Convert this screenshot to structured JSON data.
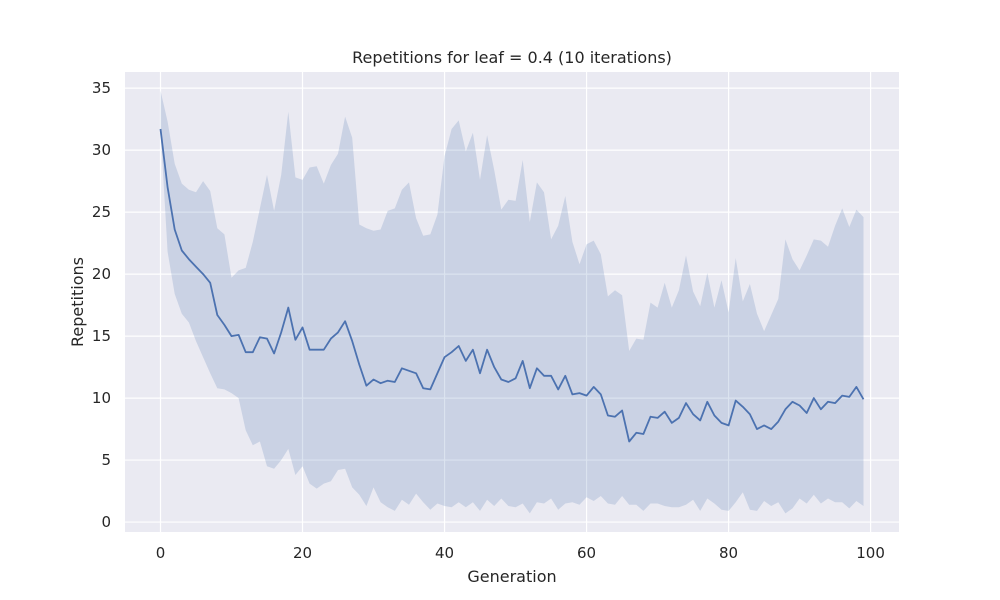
{
  "chart_data": {
    "type": "line",
    "title": "Repetitions for leaf = 0.4 (10 iterations)",
    "xlabel": "Generation",
    "ylabel": "Repetitions",
    "xlim": [
      -5,
      104
    ],
    "ylim": [
      -0.8,
      36.3
    ],
    "xticks": [
      0,
      20,
      40,
      60,
      80,
      100
    ],
    "yticks": [
      0,
      5,
      10,
      15,
      20,
      25,
      30,
      35
    ],
    "grid": true,
    "style": {
      "background": "#eaeaf2",
      "grid": "#ffffff",
      "line": "#4c72b0",
      "band": "#4c72b0",
      "band_opacity": 0.2
    },
    "series": [
      {
        "x": [
          0,
          1,
          2,
          3,
          4,
          5,
          6,
          7,
          8,
          9,
          10,
          11,
          12,
          13,
          14,
          15,
          16,
          17,
          18,
          19,
          20,
          21,
          22,
          23,
          24,
          25,
          26,
          27,
          28,
          29,
          30,
          31,
          32,
          33,
          34,
          35,
          36,
          37,
          38,
          39,
          40,
          41,
          42,
          43,
          44,
          45,
          46,
          47,
          48,
          49,
          50,
          51,
          52,
          53,
          54,
          55,
          56,
          57,
          58,
          59,
          60,
          61,
          62,
          63,
          64,
          65,
          66,
          67,
          68,
          69,
          70,
          71,
          72,
          73,
          74,
          75,
          76,
          77,
          78,
          79,
          80,
          81,
          82,
          83,
          84,
          85,
          86,
          87,
          88,
          89,
          90,
          91,
          92,
          93,
          94,
          95,
          96,
          97,
          98,
          99
        ],
        "mean": [
          31.7,
          27.0,
          23.6,
          21.9,
          21.2,
          20.6,
          20.0,
          19.3,
          16.7,
          15.9,
          15.0,
          15.1,
          13.7,
          13.7,
          14.9,
          14.8,
          13.6,
          15.3,
          17.3,
          14.7,
          15.7,
          13.9,
          13.9,
          13.9,
          14.8,
          15.3,
          16.2,
          14.6,
          12.7,
          11.0,
          11.5,
          11.2,
          11.4,
          11.3,
          12.4,
          12.2,
          12.0,
          10.8,
          10.7,
          12.0,
          13.3,
          13.7,
          14.2,
          13.0,
          13.9,
          12.0,
          13.9,
          12.5,
          11.5,
          11.3,
          11.6,
          13.0,
          10.8,
          12.4,
          11.8,
          11.8,
          10.7,
          11.8,
          10.3,
          10.4,
          10.2,
          10.9,
          10.3,
          8.6,
          8.5,
          9.0,
          6.5,
          7.2,
          7.1,
          8.5,
          8.4,
          8.9,
          8.0,
          8.4,
          9.6,
          8.7,
          8.2,
          9.7,
          8.6,
          8.0,
          7.8,
          9.8,
          9.3,
          8.7,
          7.5,
          7.8,
          7.5,
          8.1,
          9.1,
          9.7,
          9.4,
          8.8,
          10.0,
          9.1,
          9.7,
          9.6,
          10.2,
          10.1,
          10.9,
          9.9
        ],
        "lower": [
          31.7,
          21.8,
          18.4,
          16.8,
          16.1,
          14.6,
          13.3,
          12.0,
          10.8,
          10.7,
          10.4,
          10.0,
          7.4,
          6.2,
          6.5,
          4.5,
          4.3,
          5.0,
          5.9,
          3.8,
          4.5,
          3.1,
          2.7,
          3.1,
          3.3,
          4.2,
          4.3,
          2.8,
          2.2,
          1.3,
          2.8,
          1.6,
          1.2,
          0.9,
          1.8,
          1.4,
          2.3,
          1.6,
          1.0,
          1.5,
          1.3,
          1.2,
          1.6,
          1.2,
          1.6,
          0.9,
          1.8,
          1.3,
          1.9,
          1.3,
          1.2,
          1.5,
          0.7,
          1.6,
          1.5,
          1.9,
          1.0,
          1.5,
          1.6,
          1.4,
          2.0,
          1.7,
          2.1,
          1.5,
          1.4,
          2.1,
          1.4,
          1.4,
          0.9,
          1.5,
          1.5,
          1.3,
          1.2,
          1.2,
          1.4,
          1.8,
          0.9,
          1.9,
          1.5,
          1.0,
          0.9,
          1.6,
          2.4,
          1.0,
          0.9,
          1.7,
          1.3,
          1.6,
          0.7,
          1.1,
          1.9,
          1.5,
          2.2,
          1.5,
          1.9,
          1.6,
          1.6,
          1.1,
          1.7,
          1.3
        ],
        "upper": [
          34.8,
          32.3,
          28.9,
          27.3,
          26.8,
          26.6,
          27.5,
          26.7,
          23.7,
          23.2,
          19.7,
          20.3,
          20.5,
          22.6,
          25.3,
          28.0,
          25.1,
          28.0,
          33.1,
          27.8,
          27.6,
          28.6,
          28.7,
          27.3,
          28.8,
          29.7,
          32.7,
          31.0,
          24.0,
          23.7,
          23.5,
          23.6,
          25.1,
          25.3,
          26.8,
          27.4,
          24.5,
          23.1,
          23.2,
          24.8,
          29.5,
          31.7,
          32.4,
          29.9,
          31.4,
          27.6,
          31.2,
          28.4,
          25.2,
          26.0,
          25.9,
          29.2,
          24.2,
          27.4,
          26.6,
          22.8,
          23.9,
          26.3,
          22.6,
          20.8,
          22.4,
          22.7,
          21.6,
          18.2,
          18.7,
          18.3,
          13.8,
          14.8,
          14.7,
          17.7,
          17.3,
          19.3,
          17.3,
          18.7,
          21.5,
          18.6,
          17.4,
          20.1,
          17.3,
          19.5,
          16.9,
          21.3,
          17.8,
          19.2,
          16.8,
          15.4,
          16.7,
          18.0,
          22.8,
          21.2,
          20.3,
          21.5,
          22.8,
          22.7,
          22.2,
          23.9,
          25.3,
          23.8,
          25.2,
          24.6
        ]
      }
    ]
  }
}
